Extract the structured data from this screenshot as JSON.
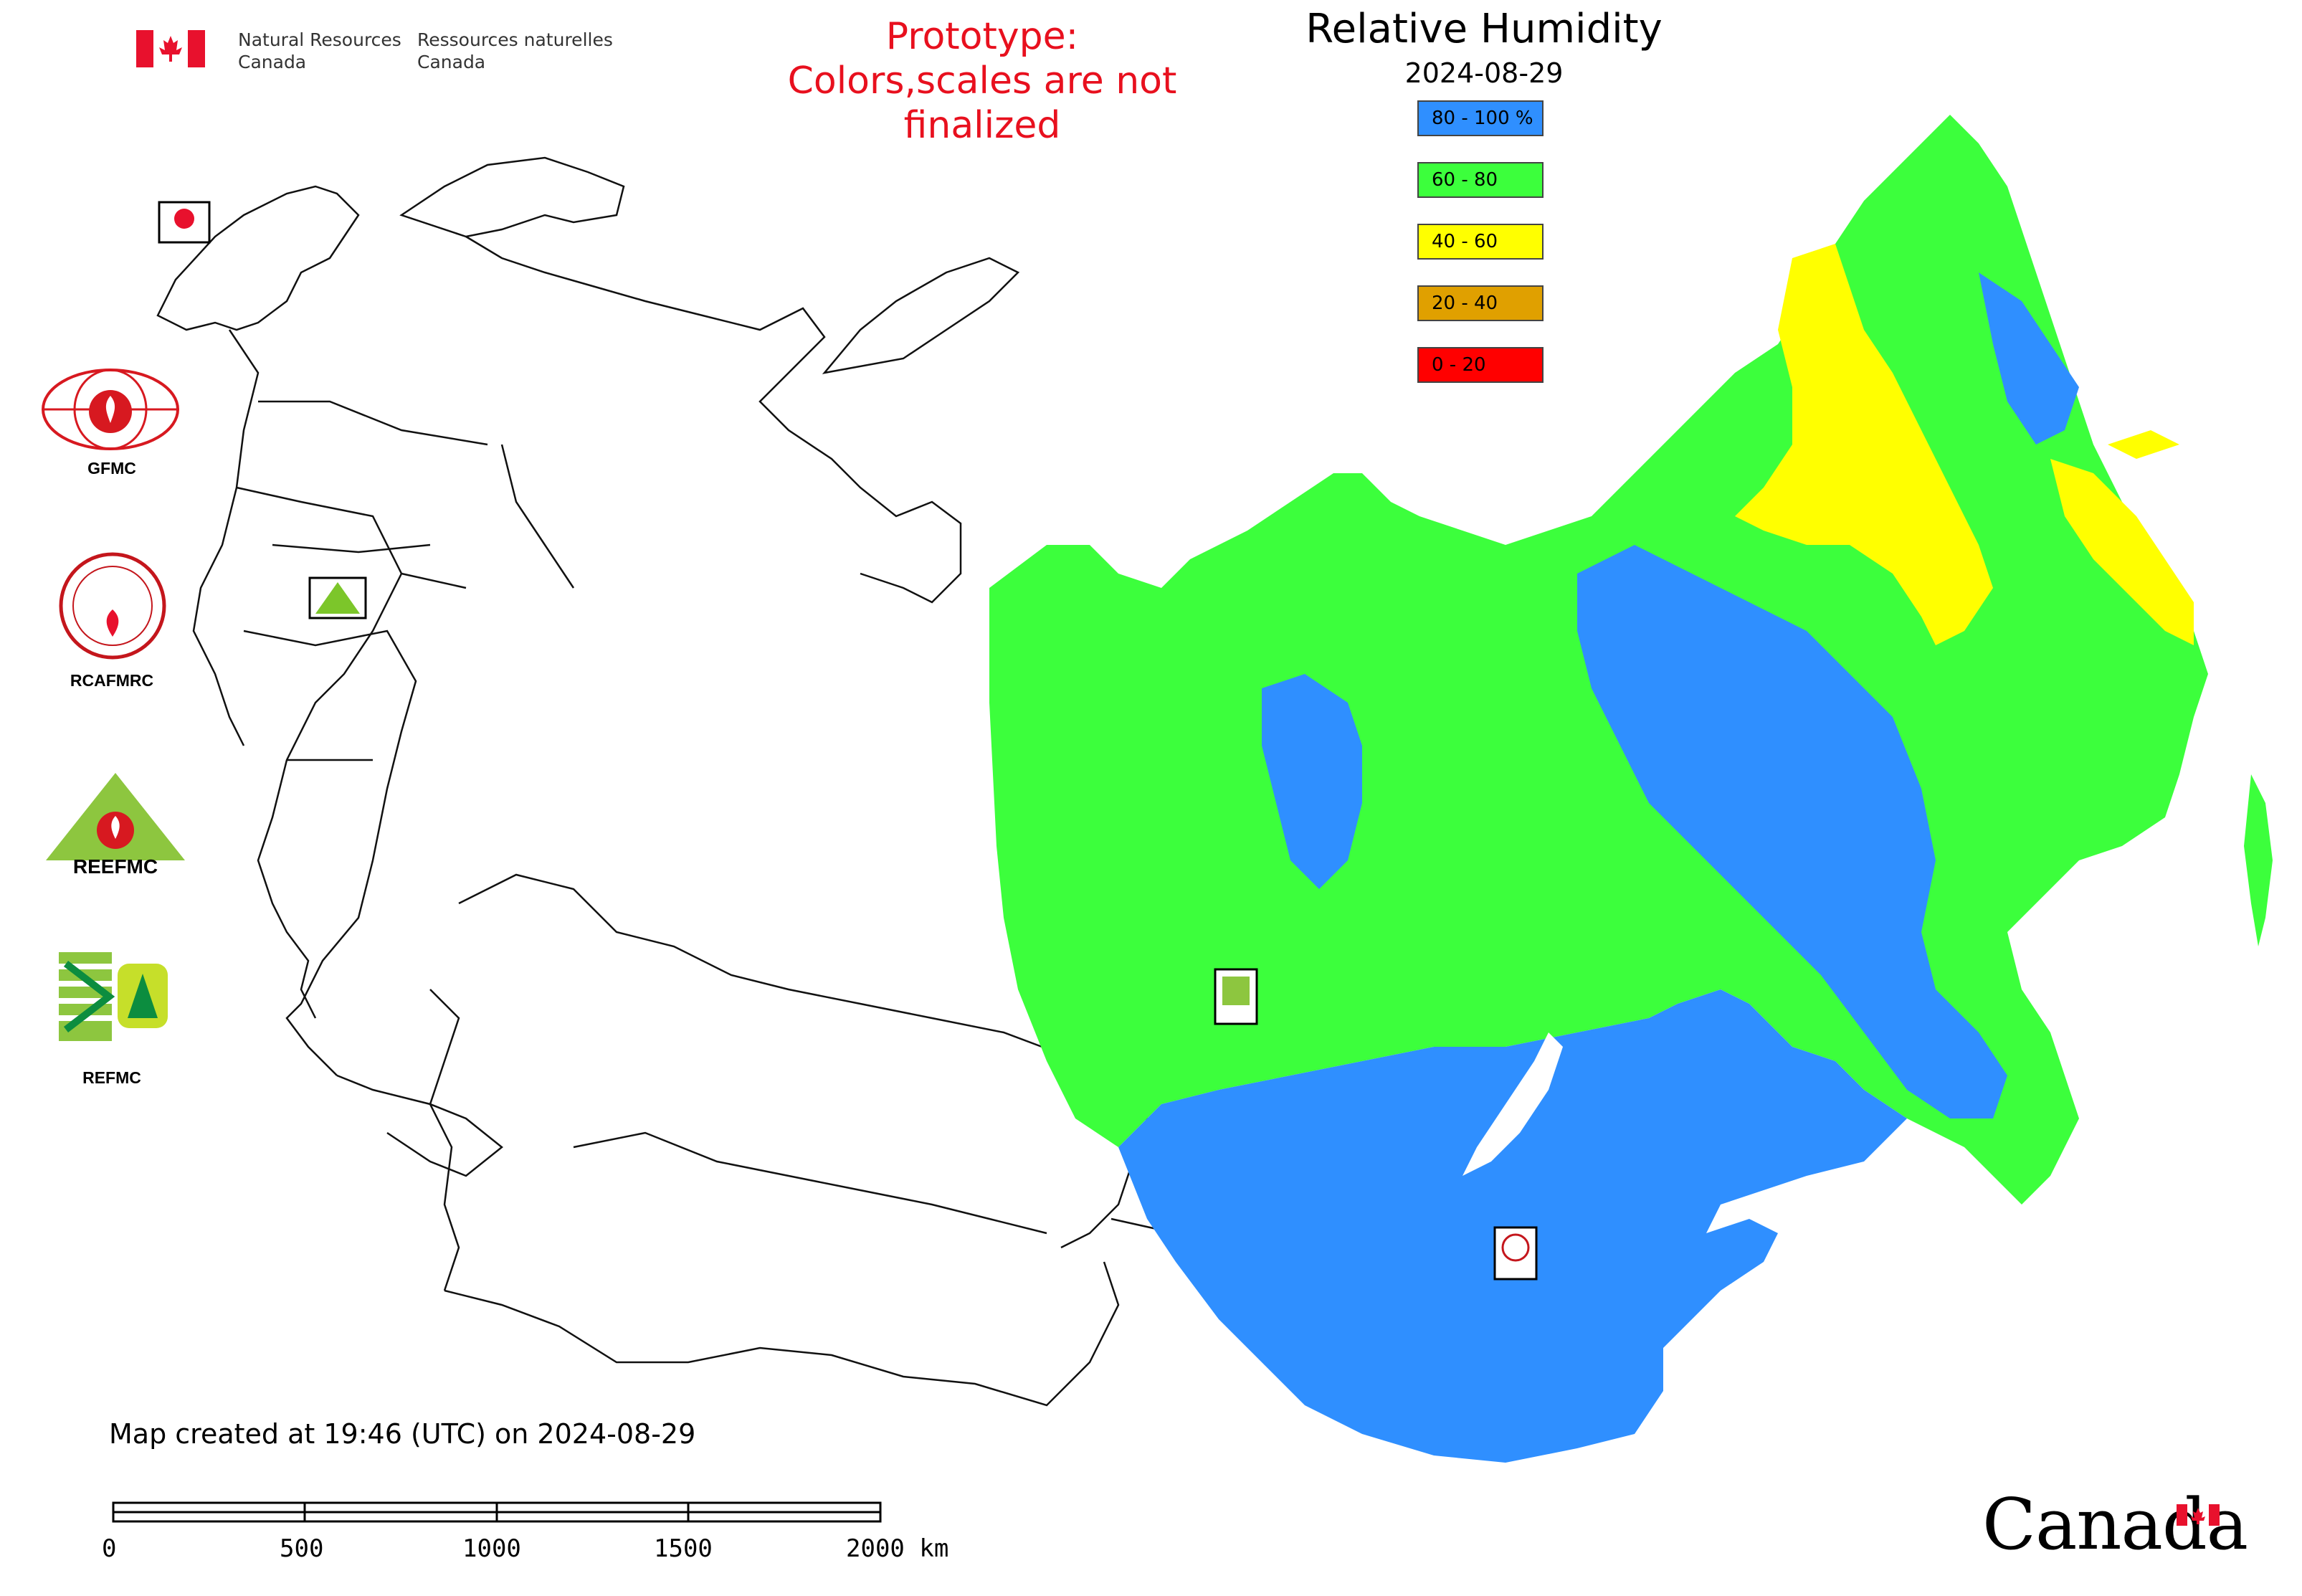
{
  "header": {
    "department_en_line1": "Natural Resources",
    "department_en_line2": "Canada",
    "department_fr_line1": "Ressources naturelles",
    "department_fr_line2": "Canada",
    "prototype_line1": "Prototype:",
    "prototype_line2": "Colors,scales are not finalized",
    "title": "Relative Humidity",
    "date": "2024-08-29"
  },
  "legend": {
    "items": [
      {
        "label": "80 - 100 %",
        "color": "#2f8fff"
      },
      {
        "label": "60 - 80",
        "color": "#3cff3c"
      },
      {
        "label": "40 - 60",
        "color": "#ffff00"
      },
      {
        "label": "20 - 40",
        "color": "#e0a000"
      },
      {
        "label": "0 - 20",
        "color": "#ff0000"
      }
    ]
  },
  "logos": {
    "gfmc": "GFMC",
    "rcafmrc": "RCAFMRC",
    "reefmc_logo_text": "REEFMC",
    "refmc": "REFMC"
  },
  "footer": {
    "created_text": "Map created at 19:46 (UTC) on 2024-08-29",
    "scale_labels": [
      "0",
      "500",
      "1000",
      "1500",
      "2000 km"
    ],
    "wordmark": "Canada"
  },
  "colors": {
    "humid_high": "#2f8fff",
    "humid_mid": "#3cff3c",
    "humid_low": "#ffff00",
    "prototype_text": "#e8101e",
    "flag_red": "#e8112d"
  }
}
